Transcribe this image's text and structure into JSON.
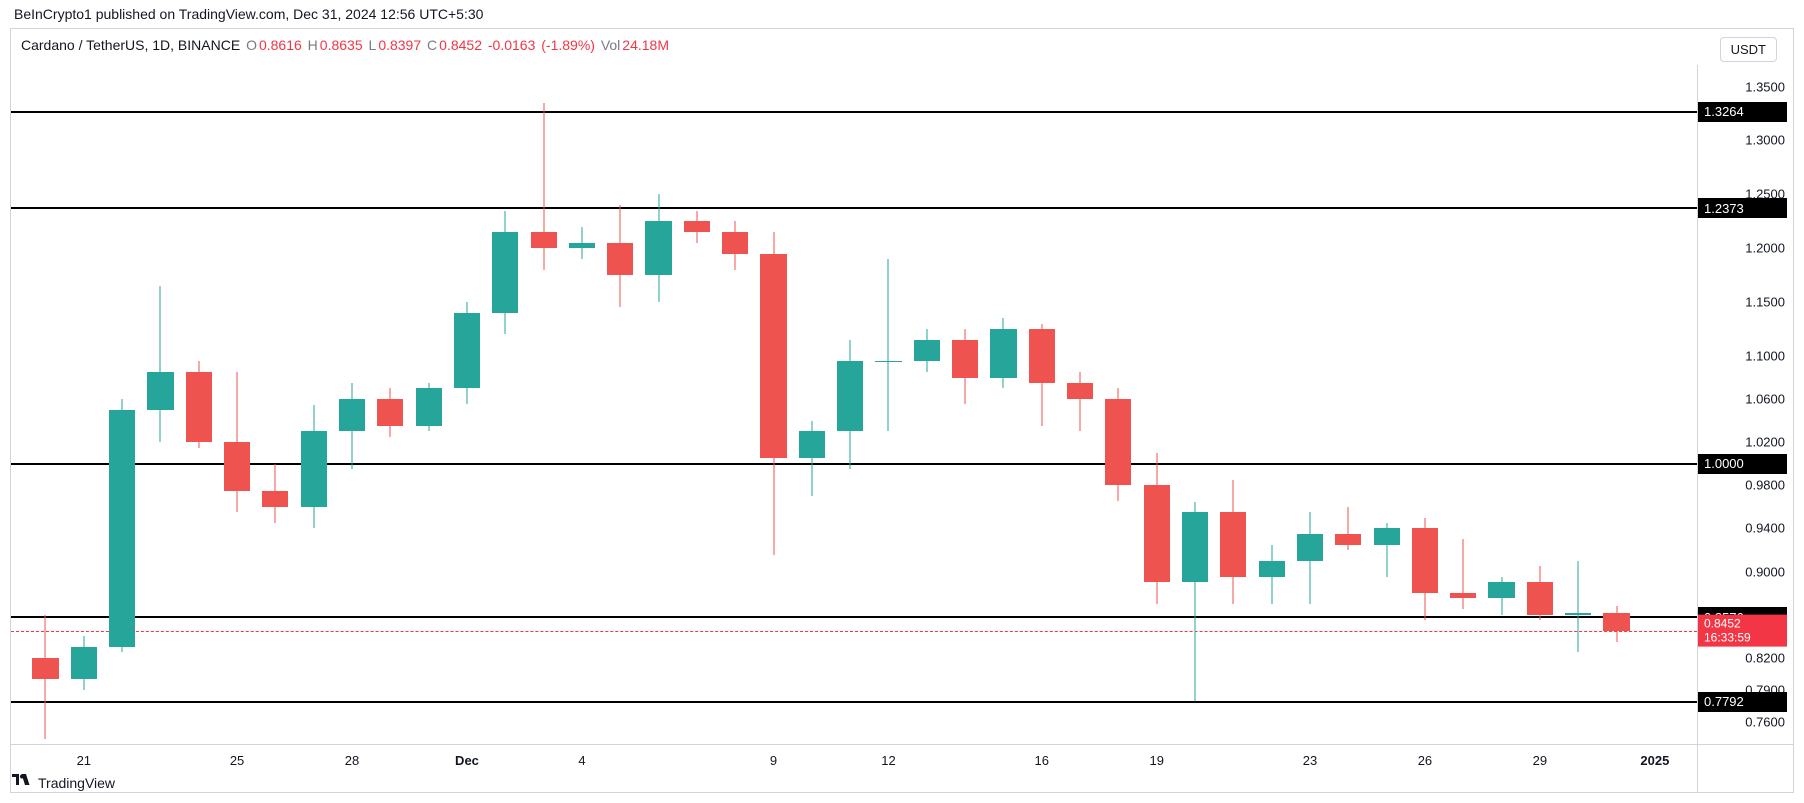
{
  "attribution": "BeInCrypto1 published on TradingView.com, Dec 31, 2024 12:56 UTC+5:30",
  "legend": {
    "symbol": "Cardano / TetherUS, 1D, BINANCE",
    "o_label": "O",
    "o": "0.8616",
    "h_label": "H",
    "h": "0.8635",
    "l_label": "L",
    "l": "0.8397",
    "c_label": "C",
    "c": "0.8452",
    "chg": "-0.0163",
    "chg_pct": "(-1.89%)",
    "vol_label": "Vol",
    "vol": "24.18M"
  },
  "badge": "USDT",
  "footer_brand": "TradingView",
  "colors": {
    "up": "#26a69a",
    "down": "#ef5350",
    "axis_text": "#131722",
    "marker_bg": "#000000",
    "price_bg": "#f23645"
  },
  "chart": {
    "type": "candlestick",
    "y_min": 0.74,
    "y_max": 1.37,
    "y_ticks": [
      {
        "v": 1.35,
        "label": "1.3500"
      },
      {
        "v": 1.3,
        "label": "1.3000"
      },
      {
        "v": 1.25,
        "label": "1.2500"
      },
      {
        "v": 1.2,
        "label": "1.2000"
      },
      {
        "v": 1.15,
        "label": "1.1500"
      },
      {
        "v": 1.1,
        "label": "1.1000"
      },
      {
        "v": 1.06,
        "label": "1.0600"
      },
      {
        "v": 1.02,
        "label": "1.0200"
      },
      {
        "v": 0.98,
        "label": "0.9800"
      },
      {
        "v": 0.94,
        "label": "0.9400"
      },
      {
        "v": 0.9,
        "label": "0.9000"
      },
      {
        "v": 0.82,
        "label": "0.8200"
      },
      {
        "v": 0.79,
        "label": "0.7900"
      },
      {
        "v": 0.76,
        "label": "0.7600"
      }
    ],
    "hlines": [
      {
        "v": 1.3264,
        "label": "1.3264"
      },
      {
        "v": 1.2373,
        "label": "1.2373"
      },
      {
        "v": 1.0,
        "label": "1.0000"
      },
      {
        "v": 0.8576,
        "label": "0.8576"
      },
      {
        "v": 0.7792,
        "label": "0.7792"
      }
    ],
    "price_line": {
      "v": 0.8452,
      "label": "0.8452",
      "countdown": "16:33:59"
    },
    "x_labels": [
      {
        "i": 1,
        "label": "21"
      },
      {
        "i": 5,
        "label": "25"
      },
      {
        "i": 8,
        "label": "28"
      },
      {
        "i": 11,
        "label": "Dec",
        "bold": true
      },
      {
        "i": 14,
        "label": "4"
      },
      {
        "i": 19,
        "label": "9"
      },
      {
        "i": 22,
        "label": "12"
      },
      {
        "i": 26,
        "label": "16"
      },
      {
        "i": 29,
        "label": "19"
      },
      {
        "i": 33,
        "label": "23"
      },
      {
        "i": 36,
        "label": "26"
      },
      {
        "i": 39,
        "label": "29"
      },
      {
        "i": 42,
        "label": "2025",
        "bold": true
      }
    ],
    "n_slots": 44,
    "candles": [
      {
        "i": 0,
        "o": 0.82,
        "h": 0.86,
        "l": 0.745,
        "c": 0.8,
        "up": false
      },
      {
        "i": 1,
        "o": 0.8,
        "h": 0.84,
        "l": 0.79,
        "c": 0.83,
        "up": true
      },
      {
        "i": 2,
        "o": 0.83,
        "h": 1.06,
        "l": 0.825,
        "c": 1.05,
        "up": true
      },
      {
        "i": 3,
        "o": 1.05,
        "h": 1.165,
        "l": 1.02,
        "c": 1.085,
        "up": true
      },
      {
        "i": 4,
        "o": 1.085,
        "h": 1.095,
        "l": 1.015,
        "c": 1.02,
        "up": false
      },
      {
        "i": 5,
        "o": 1.02,
        "h": 1.085,
        "l": 0.955,
        "c": 0.975,
        "up": false
      },
      {
        "i": 6,
        "o": 0.975,
        "h": 1.0,
        "l": 0.945,
        "c": 0.96,
        "up": false
      },
      {
        "i": 7,
        "o": 0.96,
        "h": 1.055,
        "l": 0.94,
        "c": 1.03,
        "up": true
      },
      {
        "i": 8,
        "o": 1.03,
        "h": 1.075,
        "l": 0.995,
        "c": 1.06,
        "up": true
      },
      {
        "i": 9,
        "o": 1.06,
        "h": 1.07,
        "l": 1.025,
        "c": 1.035,
        "up": false
      },
      {
        "i": 10,
        "o": 1.035,
        "h": 1.075,
        "l": 1.03,
        "c": 1.07,
        "up": true
      },
      {
        "i": 11,
        "o": 1.07,
        "h": 1.15,
        "l": 1.055,
        "c": 1.14,
        "up": true
      },
      {
        "i": 12,
        "o": 1.14,
        "h": 1.235,
        "l": 1.12,
        "c": 1.215,
        "up": true
      },
      {
        "i": 13,
        "o": 1.215,
        "h": 1.335,
        "l": 1.18,
        "c": 1.2,
        "up": false
      },
      {
        "i": 14,
        "o": 1.2,
        "h": 1.22,
        "l": 1.19,
        "c": 1.205,
        "up": true
      },
      {
        "i": 15,
        "o": 1.205,
        "h": 1.24,
        "l": 1.145,
        "c": 1.175,
        "up": false
      },
      {
        "i": 16,
        "o": 1.175,
        "h": 1.25,
        "l": 1.15,
        "c": 1.225,
        "up": true
      },
      {
        "i": 17,
        "o": 1.225,
        "h": 1.235,
        "l": 1.205,
        "c": 1.215,
        "up": false
      },
      {
        "i": 18,
        "o": 1.215,
        "h": 1.225,
        "l": 1.18,
        "c": 1.195,
        "up": false
      },
      {
        "i": 19,
        "o": 1.195,
        "h": 1.215,
        "l": 0.915,
        "c": 1.005,
        "up": false
      },
      {
        "i": 20,
        "o": 1.005,
        "h": 1.04,
        "l": 0.97,
        "c": 1.03,
        "up": true
      },
      {
        "i": 21,
        "o": 1.03,
        "h": 1.115,
        "l": 0.995,
        "c": 1.095,
        "up": true
      },
      {
        "i": 22,
        "o": 1.095,
        "h": 1.19,
        "l": 1.03,
        "c": 1.095,
        "up": true
      },
      {
        "i": 23,
        "o": 1.095,
        "h": 1.125,
        "l": 1.085,
        "c": 1.115,
        "up": true
      },
      {
        "i": 24,
        "o": 1.115,
        "h": 1.125,
        "l": 1.055,
        "c": 1.08,
        "up": false
      },
      {
        "i": 25,
        "o": 1.08,
        "h": 1.135,
        "l": 1.07,
        "c": 1.125,
        "up": true
      },
      {
        "i": 26,
        "o": 1.125,
        "h": 1.13,
        "l": 1.035,
        "c": 1.075,
        "up": false
      },
      {
        "i": 27,
        "o": 1.075,
        "h": 1.085,
        "l": 1.03,
        "c": 1.06,
        "up": false
      },
      {
        "i": 28,
        "o": 1.06,
        "h": 1.07,
        "l": 0.965,
        "c": 0.98,
        "up": false
      },
      {
        "i": 29,
        "o": 0.98,
        "h": 1.01,
        "l": 0.87,
        "c": 0.89,
        "up": false
      },
      {
        "i": 30,
        "o": 0.89,
        "h": 0.965,
        "l": 0.78,
        "c": 0.955,
        "up": true
      },
      {
        "i": 31,
        "o": 0.955,
        "h": 0.985,
        "l": 0.87,
        "c": 0.895,
        "up": false
      },
      {
        "i": 32,
        "o": 0.895,
        "h": 0.925,
        "l": 0.87,
        "c": 0.91,
        "up": true
      },
      {
        "i": 33,
        "o": 0.91,
        "h": 0.955,
        "l": 0.87,
        "c": 0.935,
        "up": true
      },
      {
        "i": 34,
        "o": 0.935,
        "h": 0.96,
        "l": 0.92,
        "c": 0.925,
        "up": false
      },
      {
        "i": 35,
        "o": 0.925,
        "h": 0.945,
        "l": 0.895,
        "c": 0.94,
        "up": true
      },
      {
        "i": 36,
        "o": 0.94,
        "h": 0.95,
        "l": 0.855,
        "c": 0.88,
        "up": false
      },
      {
        "i": 37,
        "o": 0.88,
        "h": 0.93,
        "l": 0.865,
        "c": 0.875,
        "up": false
      },
      {
        "i": 38,
        "o": 0.875,
        "h": 0.895,
        "l": 0.86,
        "c": 0.89,
        "up": true
      },
      {
        "i": 39,
        "o": 0.89,
        "h": 0.905,
        "l": 0.855,
        "c": 0.86,
        "up": false
      },
      {
        "i": 40,
        "o": 0.86,
        "h": 0.91,
        "l": 0.825,
        "c": 0.862,
        "up": true
      },
      {
        "i": 41,
        "o": 0.862,
        "h": 0.868,
        "l": 0.835,
        "c": 0.845,
        "up": false
      }
    ]
  }
}
